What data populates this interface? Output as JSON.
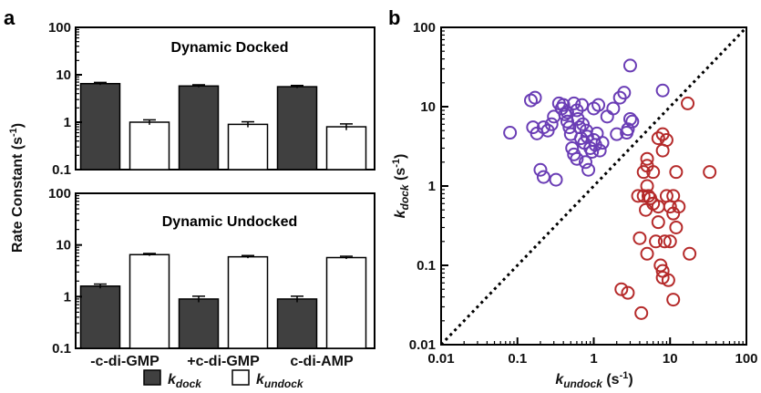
{
  "panel_labels": {
    "a": "a",
    "b": "b"
  },
  "colors": {
    "dock_bar": "#404040",
    "undock_bar": "#ffffff",
    "purple": "#6a3db5",
    "red": "#b52a2a"
  },
  "chart_data": [
    {
      "type": "bar",
      "panel": "a-top",
      "title": "Dynamic Docked",
      "title_color": "#6a3db5",
      "ylabel": "Rate Constant (s⁻¹)",
      "y_scale": "log",
      "ylim": [
        0.1,
        100
      ],
      "y_ticks": [
        "0.1",
        "1",
        "10",
        "100"
      ],
      "categories": [
        "-c-di-GMP",
        "+c-di-GMP",
        "c-di-AMP"
      ],
      "series": [
        {
          "name": "k_dock",
          "values": [
            6.5,
            5.8,
            5.6
          ],
          "errors": [
            0.4,
            0.35,
            0.35
          ],
          "color": "#404040"
        },
        {
          "name": "k_undock",
          "values": [
            1.0,
            0.9,
            0.8
          ],
          "errors": [
            0.12,
            0.12,
            0.12
          ],
          "color": "#ffffff"
        }
      ]
    },
    {
      "type": "bar",
      "panel": "a-bottom",
      "title": "Dynamic Undocked",
      "title_color": "#b52a2a",
      "y_scale": "log",
      "ylim": [
        0.1,
        100
      ],
      "y_ticks": [
        "0.1",
        "1",
        "10",
        "100"
      ],
      "categories": [
        "-c-di-GMP",
        "+c-di-GMP",
        "c-di-AMP"
      ],
      "series": [
        {
          "name": "k_dock",
          "values": [
            1.6,
            0.9,
            0.9
          ],
          "errors": [
            0.15,
            0.12,
            0.12
          ],
          "color": "#404040"
        },
        {
          "name": "k_undock",
          "values": [
            6.5,
            5.9,
            5.7
          ],
          "errors": [
            0.35,
            0.35,
            0.35
          ],
          "color": "#ffffff"
        }
      ]
    },
    {
      "type": "scatter",
      "panel": "b",
      "x_scale": "log",
      "y_scale": "log",
      "xlim": [
        0.01,
        100
      ],
      "ylim": [
        0.01,
        100
      ],
      "x_ticks": [
        "0.01",
        "0.1",
        "1",
        "10",
        "100"
      ],
      "y_ticks": [
        "0.01",
        "0.1",
        "1",
        "10",
        "100"
      ],
      "xlabel": "k_undock (s⁻¹)",
      "ylabel": "k_dock (s⁻¹)",
      "diagonal": "y = x (dotted)",
      "series": [
        {
          "name": "Dynamic Docked",
          "color": "#6a3db5",
          "points": [
            [
              0.08,
              4.7
            ],
            [
              0.15,
              12
            ],
            [
              0.17,
              13
            ],
            [
              0.16,
              5.5
            ],
            [
              0.18,
              4.6
            ],
            [
              0.2,
              1.6
            ],
            [
              0.22,
              1.3
            ],
            [
              0.25,
              5.0
            ],
            [
              0.28,
              6.0
            ],
            [
              0.3,
              7.5
            ],
            [
              0.32,
              1.2
            ],
            [
              0.35,
              11
            ],
            [
              0.38,
              9.5
            ],
            [
              0.4,
              10.5
            ],
            [
              0.42,
              8.0
            ],
            [
              0.45,
              6.5
            ],
            [
              0.48,
              5.5
            ],
            [
              0.5,
              4.5
            ],
            [
              0.52,
              3.0
            ],
            [
              0.55,
              2.5
            ],
            [
              0.55,
              11
            ],
            [
              0.6,
              9.0
            ],
            [
              0.62,
              7.0
            ],
            [
              0.65,
              5.5
            ],
            [
              0.68,
              4.0
            ],
            [
              0.7,
              10.5
            ],
            [
              0.72,
              6.0
            ],
            [
              0.75,
              3.5
            ],
            [
              0.78,
              2.0
            ],
            [
              0.8,
              5.0
            ],
            [
              0.82,
              4.2
            ],
            [
              0.85,
              1.6
            ],
            [
              0.9,
              3.0
            ],
            [
              0.95,
              2.7
            ],
            [
              1.0,
              3.8
            ],
            [
              1.0,
              9.5
            ],
            [
              1.05,
              3.3
            ],
            [
              1.1,
              4.6
            ],
            [
              1.15,
              10.5
            ],
            [
              1.2,
              2.8
            ],
            [
              1.3,
              3.5
            ],
            [
              1.5,
              7.5
            ],
            [
              1.8,
              9.5
            ],
            [
              2.0,
              4.5
            ],
            [
              2.2,
              13
            ],
            [
              2.5,
              15
            ],
            [
              2.7,
              4.7
            ],
            [
              2.8,
              5.2
            ],
            [
              3.0,
              7.0
            ],
            [
              3.0,
              33
            ],
            [
              3.2,
              6.5
            ],
            [
              0.22,
              5.5
            ],
            [
              0.6,
              2.2
            ],
            [
              0.45,
              8.5
            ],
            [
              8.0,
              16
            ]
          ]
        },
        {
          "name": "Dynamic Undocked",
          "color": "#b52a2a",
          "points": [
            [
              17,
              11
            ],
            [
              8.0,
              4.5
            ],
            [
              7.0,
              4.0
            ],
            [
              9.0,
              3.8
            ],
            [
              5.0,
              2.2
            ],
            [
              5.0,
              1.8
            ],
            [
              6.0,
              1.5
            ],
            [
              4.5,
              1.5
            ],
            [
              12,
              1.5
            ],
            [
              33,
              1.5
            ],
            [
              8.0,
              2.8
            ],
            [
              5.0,
              1.0
            ],
            [
              4.5,
              0.75
            ],
            [
              3.8,
              0.75
            ],
            [
              5.5,
              0.7
            ],
            [
              6.0,
              0.6
            ],
            [
              4.8,
              0.5
            ],
            [
              5.2,
              0.75
            ],
            [
              7.0,
              0.55
            ],
            [
              9.0,
              0.75
            ],
            [
              10,
              0.55
            ],
            [
              13,
              0.55
            ],
            [
              11,
              0.45
            ],
            [
              7.0,
              0.35
            ],
            [
              12,
              0.3
            ],
            [
              8.5,
              0.2
            ],
            [
              10,
              0.2
            ],
            [
              4.0,
              0.22
            ],
            [
              18,
              0.14
            ],
            [
              5.0,
              0.14
            ],
            [
              7.5,
              0.1
            ],
            [
              8.0,
              0.085
            ],
            [
              8.0,
              0.07
            ],
            [
              9.5,
              0.065
            ],
            [
              2.3,
              0.05
            ],
            [
              2.8,
              0.045
            ],
            [
              11,
              0.037
            ],
            [
              4.2,
              0.025
            ],
            [
              6.5,
              0.2
            ],
            [
              11,
              0.75
            ]
          ]
        }
      ]
    }
  ],
  "legend": {
    "dock": {
      "sym": "k",
      "sub": "dock"
    },
    "undock": {
      "sym": "k",
      "sub": "undock"
    }
  },
  "labels": {
    "a_ylabel": {
      "main": "Rate Constant (s",
      "sup": "-1",
      "end": ")"
    },
    "b_xlabel": {
      "sym": "k",
      "sub": "undock",
      "unit": " (s",
      "sup": "-1",
      "end": ")"
    },
    "b_ylabel": {
      "sym": "k",
      "sub": "dock",
      "unit": " (s",
      "sup": "-1",
      "end": ")"
    }
  }
}
